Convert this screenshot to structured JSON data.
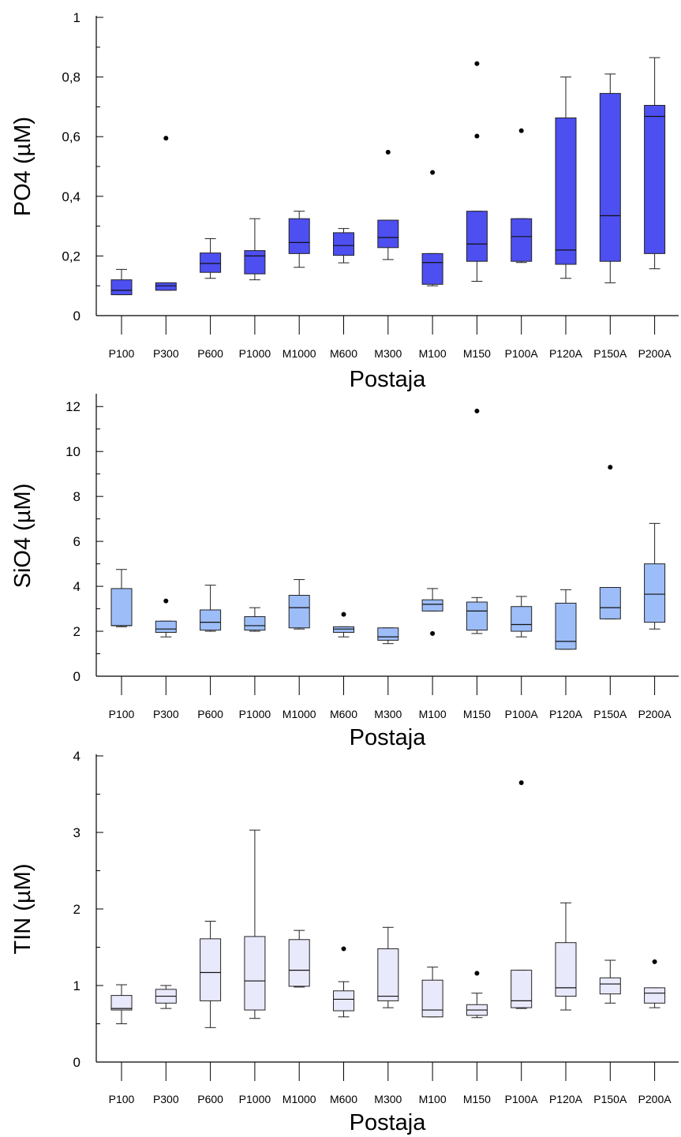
{
  "chart_data": [
    {
      "type": "box",
      "xlabel": "Postaja",
      "ylabel": "PO4 (µM)",
      "ylim": [
        0,
        1
      ],
      "yticks": [
        0,
        0.2,
        0.4,
        0.6,
        0.8,
        1
      ],
      "ytick_labels": [
        "0",
        "0,2",
        "0,4",
        "0,6",
        "0,8",
        "1"
      ],
      "minor_ticks": true,
      "grid": false,
      "box_color": "#4d4ff0",
      "categories": [
        "P100",
        "P300",
        "P600",
        "P1000",
        "M1000",
        "M600",
        "M300",
        "M100",
        "M150",
        "P100A",
        "P120A",
        "P150A",
        "P200A"
      ],
      "boxes": [
        {
          "min": 0.07,
          "q1": 0.07,
          "median": 0.085,
          "q3": 0.12,
          "max": 0.155,
          "outliers": []
        },
        {
          "min": 0.085,
          "q1": 0.085,
          "median": 0.1,
          "q3": 0.11,
          "max": 0.11,
          "outliers": [
            0.595
          ]
        },
        {
          "min": 0.125,
          "q1": 0.145,
          "median": 0.175,
          "q3": 0.21,
          "max": 0.258,
          "outliers": []
        },
        {
          "min": 0.12,
          "q1": 0.14,
          "median": 0.2,
          "q3": 0.218,
          "max": 0.325,
          "outliers": []
        },
        {
          "min": 0.162,
          "q1": 0.208,
          "median": 0.245,
          "q3": 0.325,
          "max": 0.35,
          "outliers": []
        },
        {
          "min": 0.177,
          "q1": 0.202,
          "median": 0.235,
          "q3": 0.278,
          "max": 0.292,
          "outliers": []
        },
        {
          "min": 0.188,
          "q1": 0.228,
          "median": 0.262,
          "q3": 0.32,
          "max": 0.32,
          "outliers": [
            0.548
          ]
        },
        {
          "min": 0.1,
          "q1": 0.105,
          "median": 0.178,
          "q3": 0.208,
          "max": 0.208,
          "outliers": [
            0.48
          ]
        },
        {
          "min": 0.115,
          "q1": 0.182,
          "median": 0.24,
          "q3": 0.35,
          "max": 0.35,
          "outliers": [
            0.602,
            0.845
          ]
        },
        {
          "min": 0.178,
          "q1": 0.182,
          "median": 0.265,
          "q3": 0.325,
          "max": 0.325,
          "outliers": [
            0.62
          ]
        },
        {
          "min": 0.125,
          "q1": 0.172,
          "median": 0.22,
          "q3": 0.663,
          "max": 0.8,
          "outliers": []
        },
        {
          "min": 0.11,
          "q1": 0.182,
          "median": 0.335,
          "q3": 0.745,
          "max": 0.81,
          "outliers": []
        },
        {
          "min": 0.157,
          "q1": 0.208,
          "median": 0.668,
          "q3": 0.705,
          "max": 0.865,
          "outliers": []
        }
      ]
    },
    {
      "type": "box",
      "xlabel": "Postaja",
      "ylabel": "SiO4 (µM)",
      "ylim": [
        0,
        12.5
      ],
      "yticks": [
        0,
        2,
        4,
        6,
        8,
        10,
        12
      ],
      "ytick_labels": [
        "0",
        "2",
        "4",
        "6",
        "8",
        "10",
        "12"
      ],
      "minor_ticks": true,
      "grid": false,
      "box_color": "#9dbdf8",
      "categories": [
        "P100",
        "P300",
        "P600",
        "P1000",
        "M1000",
        "M600",
        "M300",
        "M100",
        "M150",
        "P100A",
        "P120A",
        "P150A",
        "P200A"
      ],
      "boxes": [
        {
          "min": 2.2,
          "q1": 2.25,
          "median": 2.25,
          "q3": 3.9,
          "max": 4.75,
          "outliers": []
        },
        {
          "min": 1.75,
          "q1": 1.95,
          "median": 2.1,
          "q3": 2.45,
          "max": 2.45,
          "outliers": [
            3.35
          ]
        },
        {
          "min": 2.0,
          "q1": 2.05,
          "median": 2.4,
          "q3": 2.95,
          "max": 4.05,
          "outliers": []
        },
        {
          "min": 2.0,
          "q1": 2.05,
          "median": 2.25,
          "q3": 2.65,
          "max": 3.05,
          "outliers": []
        },
        {
          "min": 2.1,
          "q1": 2.15,
          "median": 3.05,
          "q3": 3.6,
          "max": 4.3,
          "outliers": []
        },
        {
          "min": 1.75,
          "q1": 1.95,
          "median": 2.1,
          "q3": 2.2,
          "max": 2.2,
          "outliers": [
            2.75
          ]
        },
        {
          "min": 1.45,
          "q1": 1.6,
          "median": 1.75,
          "q3": 2.15,
          "max": 2.15,
          "outliers": []
        },
        {
          "min": 2.9,
          "q1": 2.9,
          "median": 3.2,
          "q3": 3.4,
          "max": 3.9,
          "outliers": [
            1.9
          ]
        },
        {
          "min": 1.9,
          "q1": 2.05,
          "median": 2.9,
          "q3": 3.3,
          "max": 3.5,
          "outliers": [
            11.8
          ]
        },
        {
          "min": 1.75,
          "q1": 2.0,
          "median": 2.3,
          "q3": 3.1,
          "max": 3.55,
          "outliers": []
        },
        {
          "min": 1.2,
          "q1": 1.2,
          "median": 1.55,
          "q3": 3.25,
          "max": 3.85,
          "outliers": []
        },
        {
          "min": 2.55,
          "q1": 2.55,
          "median": 3.05,
          "q3": 3.95,
          "max": 3.95,
          "outliers": [
            9.3
          ]
        },
        {
          "min": 2.1,
          "q1": 2.4,
          "median": 3.65,
          "q3": 5.0,
          "max": 6.8,
          "outliers": []
        }
      ]
    },
    {
      "type": "box",
      "xlabel": "Postaja",
      "ylabel": "TIN (µM)",
      "ylim": [
        0,
        4
      ],
      "yticks": [
        0,
        1,
        2,
        3,
        4
      ],
      "ytick_labels": [
        "0",
        "1",
        "2",
        "3",
        "4"
      ],
      "minor_ticks": true,
      "grid": false,
      "box_color": "#e9e9fc",
      "categories": [
        "P100",
        "P300",
        "P600",
        "P1000",
        "M1000",
        "M600",
        "M300",
        "M100",
        "M150",
        "P100A",
        "P120A",
        "P150A",
        "P200A"
      ],
      "boxes": [
        {
          "min": 0.5,
          "q1": 0.68,
          "median": 0.7,
          "q3": 0.87,
          "max": 1.01,
          "outliers": []
        },
        {
          "min": 0.7,
          "q1": 0.77,
          "median": 0.86,
          "q3": 0.95,
          "max": 1.0,
          "outliers": []
        },
        {
          "min": 0.45,
          "q1": 0.8,
          "median": 1.17,
          "q3": 1.61,
          "max": 1.84,
          "outliers": []
        },
        {
          "min": 0.57,
          "q1": 0.68,
          "median": 1.06,
          "q3": 1.64,
          "max": 3.03,
          "outliers": []
        },
        {
          "min": 0.98,
          "q1": 0.99,
          "median": 1.2,
          "q3": 1.6,
          "max": 1.72,
          "outliers": []
        },
        {
          "min": 0.59,
          "q1": 0.67,
          "median": 0.82,
          "q3": 0.93,
          "max": 1.05,
          "outliers": [
            1.48
          ]
        },
        {
          "min": 0.71,
          "q1": 0.8,
          "median": 0.86,
          "q3": 1.48,
          "max": 1.76,
          "outliers": []
        },
        {
          "min": 0.59,
          "q1": 0.59,
          "median": 0.68,
          "q3": 1.07,
          "max": 1.24,
          "outliers": []
        },
        {
          "min": 0.58,
          "q1": 0.61,
          "median": 0.68,
          "q3": 0.75,
          "max": 0.9,
          "outliers": [
            1.16
          ]
        },
        {
          "min": 0.7,
          "q1": 0.71,
          "median": 0.8,
          "q3": 1.2,
          "max": 1.2,
          "outliers": [
            3.65
          ]
        },
        {
          "min": 0.68,
          "q1": 0.86,
          "median": 0.97,
          "q3": 1.56,
          "max": 2.08,
          "outliers": []
        },
        {
          "min": 0.77,
          "q1": 0.89,
          "median": 1.02,
          "q3": 1.1,
          "max": 1.33,
          "outliers": []
        },
        {
          "min": 0.71,
          "q1": 0.77,
          "median": 0.9,
          "q3": 0.97,
          "max": 0.97,
          "outliers": [
            1.31
          ]
        }
      ]
    }
  ]
}
